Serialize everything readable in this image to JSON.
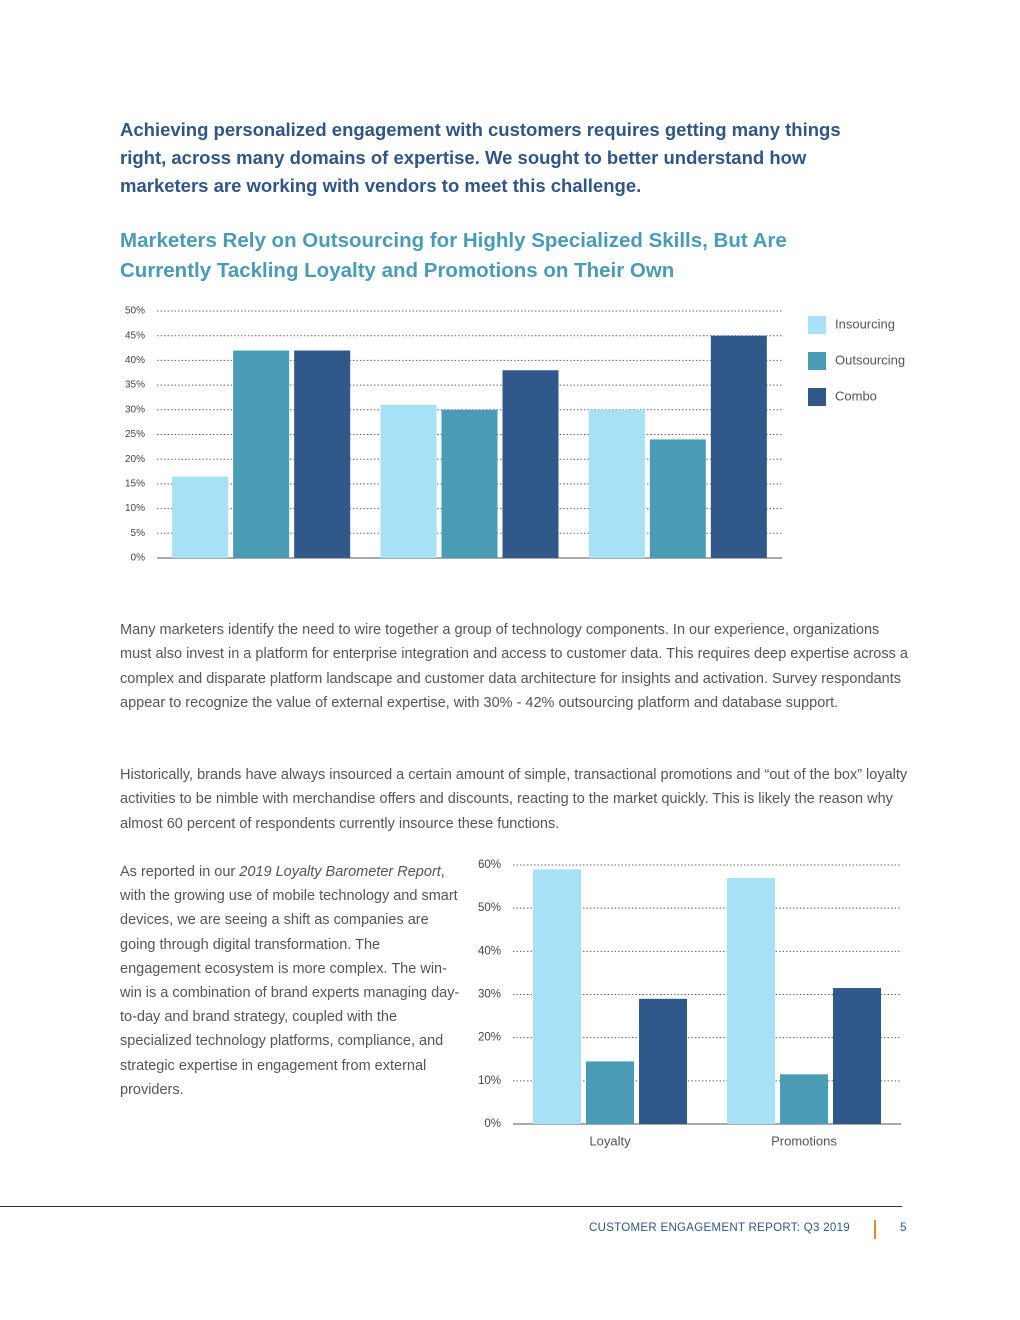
{
  "intro": "Achieving personalized engagement with customers requires getting many things right, across many domains of expertise. We sought to better understand how marketers are working with vendors to meet this challenge.",
  "chart_data": [
    {
      "type": "bar",
      "title": "Marketers Rely on Outsourcing for Highly Specialized Skills, But Are Currently Tackling Loyalty and Promotions on Their Own",
      "categories": [
        null,
        null,
        null
      ],
      "series": [
        {
          "name": "Insourcing",
          "color": "#a6e1f5",
          "values": [
            16.5,
            31,
            30
          ]
        },
        {
          "name": "Outsourcing",
          "color": "#4a9bb5",
          "values": [
            42,
            30,
            24
          ]
        },
        {
          "name": "Combo",
          "color": "#30588a",
          "values": [
            42,
            38,
            45
          ]
        }
      ],
      "ylim": [
        0,
        50
      ],
      "yticks": [
        {
          "value": 0,
          "label": "0%"
        },
        {
          "value": 5,
          "label": "5%"
        },
        {
          "value": 10,
          "label": "10%"
        },
        {
          "value": 15,
          "label": "15%"
        },
        {
          "value": 20,
          "label": "20%"
        },
        {
          "value": 25,
          "label": "25%"
        },
        {
          "value": 30,
          "label": "30%"
        },
        {
          "value": 35,
          "label": "35%"
        },
        {
          "value": 40,
          "label": "40%"
        },
        {
          "value": 45,
          "label": "45%"
        },
        {
          "value": 50,
          "label": "50%"
        }
      ],
      "grid": true,
      "legend": "right"
    },
    {
      "type": "bar",
      "categories": [
        "Loyalty",
        "Promotions"
      ],
      "series": [
        {
          "color": "#a6e1f5",
          "values": [
            59,
            57
          ]
        },
        {
          "color": "#4a9bb5",
          "values": [
            14.5,
            11.5
          ]
        },
        {
          "color": "#30588a",
          "values": [
            29,
            31.5
          ]
        }
      ],
      "ylim": [
        0,
        60
      ],
      "yticks": [
        {
          "value": 0,
          "label": "0%"
        },
        {
          "value": 10,
          "label": "10%"
        },
        {
          "value": 20,
          "label": "20%"
        },
        {
          "value": 30,
          "label": "30%"
        },
        {
          "value": 40,
          "label": "40%"
        },
        {
          "value": 50,
          "label": "50%"
        },
        {
          "value": 60,
          "label": "60%"
        }
      ],
      "grid": true
    }
  ],
  "paragraphs": [
    "Many marketers identify the need to wire together a group of technology components. In our experience, organizations must also invest in a platform for enterprise integration and access to customer data. This requires deep expertise across a complex and disparate platform landscape and customer data architecture for insights and activation. Survey respondants appear to recognize the value of external expertise, with 30% - 42% outsourcing platform and database support.",
    "Historically, brands have always insourced a certain amount of simple, transactional promotions and “out of the box” loyalty activities to be nimble with merchandise offers and discounts, reacting to the market quickly. This is likely the reason why almost 60 percent of respondents currently insource these functions."
  ],
  "side_text": {
    "before": "As reported in our ",
    "italic": "2019 Loyalty Barometer Report",
    "after": ", with the growing use of mobile technology and smart devices, we are seeing a shift as companies are going through digital transformation. The engagement ecosystem is more complex. The win-win is a combination of brand experts managing day-to-day and brand strategy, coupled with the specialized technology platforms, compliance, and strategic expertise in engagement from external providers."
  },
  "footer": {
    "report": "CUSTOMER ENGAGEMENT REPORT: Q3 2019",
    "page": "5"
  }
}
